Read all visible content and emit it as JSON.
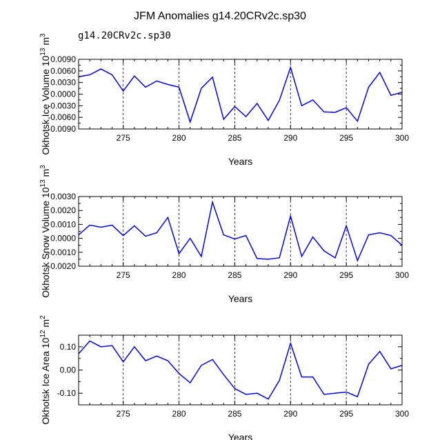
{
  "title": "JFM Anomalies g14.20CRv2c.sp30",
  "legend_label": "g14.20CRv2c.sp30",
  "colors": {
    "series": "#0000ff",
    "legend": "#4a4adc"
  },
  "chart_data": [
    {
      "type": "line",
      "ylabel": "Okhotsk Ice Volume 10",
      "ylabel_exp": "13",
      "ylabel_unit": " m",
      "ylabel_unit_exp": "3",
      "xlabel": "Years",
      "xlim": [
        271,
        300
      ],
      "ylim": [
        -0.009,
        0.009
      ],
      "xticks": [
        275,
        280,
        285,
        290,
        295,
        300
      ],
      "xtick_labels": [
        "275",
        "280",
        "285",
        "290",
        "295",
        "300"
      ],
      "yticks": [
        0.009,
        0.006,
        0.003,
        0.0,
        -0.003,
        -0.006,
        -0.009
      ],
      "ytick_labels": [
        "0.0090",
        "0.0060",
        "0.0030",
        "0.0000",
        "-0.0030",
        "-0.0060",
        "-0.0090"
      ],
      "grid_x": [
        275,
        280,
        285,
        290,
        295
      ],
      "x": [
        271,
        272,
        273,
        274,
        275,
        276,
        277,
        278,
        279,
        280,
        281,
        282,
        283,
        284,
        285,
        286,
        287,
        288,
        289,
        290,
        291,
        292,
        293,
        294,
        295,
        296,
        297,
        298,
        299,
        300
      ],
      "y": [
        0.0045,
        0.005,
        0.0065,
        0.005,
        0.0008,
        0.0047,
        0.0018,
        0.0034,
        0.0025,
        0.0018,
        -0.0072,
        0.0015,
        0.0044,
        -0.0065,
        -0.0032,
        -0.0058,
        -0.0024,
        -0.0068,
        -0.0016,
        0.0069,
        -0.003,
        -0.0015,
        -0.0046,
        -0.0047,
        -0.0035,
        -0.007,
        0.0018,
        0.0056,
        -0.0003,
        0.0005
      ]
    },
    {
      "type": "line",
      "ylabel": "Okhotsk Snow Volume 10",
      "ylabel_exp": "13",
      "ylabel_unit": " m",
      "ylabel_unit_exp": "3",
      "xlabel": "Years",
      "xlim": [
        271,
        300
      ],
      "ylim": [
        -0.002,
        0.003
      ],
      "xticks": [
        275,
        280,
        285,
        290,
        295,
        300
      ],
      "xtick_labels": [
        "275",
        "280",
        "285",
        "290",
        "295",
        "300"
      ],
      "yticks": [
        0.003,
        0.002,
        0.001,
        0.0,
        -0.001,
        -0.002
      ],
      "ytick_labels": [
        "0.0030",
        "0.0020",
        "0.0010",
        "0.0000",
        "-0.0010",
        "-0.0020"
      ],
      "grid_x": [
        275,
        280,
        285,
        290,
        295
      ],
      "x": [
        271,
        272,
        273,
        274,
        275,
        276,
        277,
        278,
        279,
        280,
        281,
        282,
        283,
        284,
        285,
        286,
        287,
        288,
        289,
        290,
        291,
        292,
        293,
        294,
        295,
        296,
        297,
        298,
        299,
        300
      ],
      "y": [
        0.00025,
        0.00095,
        0.0008,
        0.00095,
        0.0002,
        0.0009,
        0.00015,
        0.0004,
        0.0015,
        -0.0011,
        0.0,
        -0.0013,
        0.0026,
        0.00025,
        -5e-05,
        0.0002,
        -0.00145,
        -0.0015,
        -0.0014,
        0.0016,
        -0.0013,
        0.0001,
        -0.0009,
        -0.0014,
        0.0009,
        -0.0016,
        0.00025,
        0.0004,
        0.0002,
        -0.0005
      ]
    },
    {
      "type": "line",
      "ylabel": "Okhotsk Ice Area 10",
      "ylabel_exp": "12",
      "ylabel_unit": " m",
      "ylabel_unit_exp": "2",
      "xlabel": "Years",
      "xlim": [
        271,
        300
      ],
      "ylim": [
        -0.15,
        0.15
      ],
      "xticks": [
        275,
        280,
        285,
        290,
        295,
        300
      ],
      "xtick_labels": [
        "275",
        "280",
        "285",
        "290",
        "295",
        "300"
      ],
      "yticks": [
        0.1,
        0.0,
        -0.1
      ],
      "ytick_labels": [
        "0.10",
        "0.00",
        "-0.10"
      ],
      "grid_x": [
        275,
        280,
        285,
        290,
        295
      ],
      "x": [
        271,
        272,
        273,
        274,
        275,
        276,
        277,
        278,
        279,
        280,
        281,
        282,
        283,
        284,
        285,
        286,
        287,
        288,
        289,
        290,
        291,
        292,
        293,
        294,
        295,
        296,
        297,
        298,
        299,
        300
      ],
      "y": [
        0.07,
        0.125,
        0.1,
        0.105,
        0.035,
        0.1,
        0.04,
        0.06,
        0.04,
        -0.015,
        -0.055,
        0.02,
        0.045,
        -0.02,
        -0.08,
        -0.105,
        -0.1,
        -0.125,
        -0.045,
        0.115,
        -0.03,
        -0.03,
        -0.105,
        -0.1,
        -0.095,
        -0.115,
        0.025,
        0.08,
        0.005,
        0.02
      ]
    }
  ]
}
